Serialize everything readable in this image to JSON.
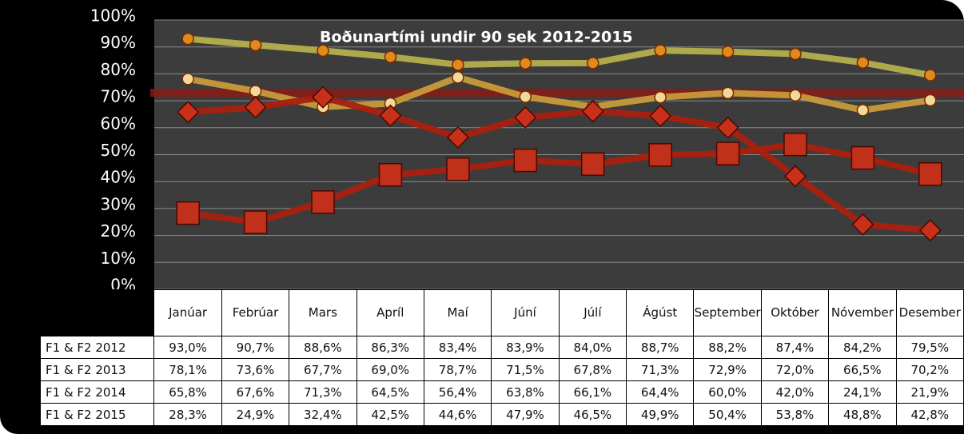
{
  "chart_data": {
    "type": "line",
    "title": "Boðunartími undir 90 sek 2012-2015",
    "categories": [
      "Janúar",
      "Febrúar",
      "Mars",
      "Apríl",
      "Maí",
      "Júní",
      "Júlí",
      "Ágúst",
      "September",
      "Október",
      "Nóvember",
      "Desember"
    ],
    "ylim": [
      0,
      100
    ],
    "yticks": [
      {
        "value": 0,
        "label": "0%"
      },
      {
        "value": 10,
        "label": "10%"
      },
      {
        "value": 20,
        "label": "20%"
      },
      {
        "value": 30,
        "label": "30%"
      },
      {
        "value": 40,
        "label": "40%"
      },
      {
        "value": 50,
        "label": "50%"
      },
      {
        "value": 60,
        "label": "60%"
      },
      {
        "value": 70,
        "label": "70%"
      },
      {
        "value": 80,
        "label": "80%"
      },
      {
        "value": 90,
        "label": "90%"
      },
      {
        "value": 100,
        "label": "100%"
      }
    ],
    "grid": true,
    "reference_line": {
      "value": 73,
      "color": "#8a1a14"
    },
    "series": [
      {
        "name": "F1 & F2 2012",
        "color": "#b4b04c",
        "marker": "circle",
        "marker_color": "#e08a1e",
        "values": [
          93.0,
          90.7,
          88.6,
          86.3,
          83.4,
          83.9,
          84.0,
          88.7,
          88.2,
          87.4,
          84.2,
          79.5
        ],
        "value_labels": [
          "93,0%",
          "90,7%",
          "88,6%",
          "86,3%",
          "83,4%",
          "83,9%",
          "84,0%",
          "88,7%",
          "88,2%",
          "87,4%",
          "84,2%",
          "79,5%"
        ]
      },
      {
        "name": "F1 & F2 2013",
        "color": "#c89a3a",
        "marker": "circle",
        "marker_color": "#f2d89a",
        "values": [
          78.1,
          73.6,
          67.7,
          69.0,
          78.7,
          71.5,
          67.8,
          71.3,
          72.9,
          72.0,
          66.5,
          70.2
        ],
        "value_labels": [
          "78,1%",
          "73,6%",
          "67,7%",
          "69,0%",
          "78,7%",
          "71,5%",
          "67,8%",
          "71,3%",
          "72,9%",
          "72,0%",
          "66,5%",
          "70,2%"
        ]
      },
      {
        "name": "F1 & F2 2014",
        "color": "#a8200e",
        "marker": "diamond",
        "marker_color": "#c8301a",
        "values": [
          65.8,
          67.6,
          71.3,
          64.5,
          56.4,
          63.8,
          66.1,
          64.4,
          60.0,
          42.0,
          24.1,
          21.9
        ],
        "value_labels": [
          "65,8%",
          "67,6%",
          "71,3%",
          "64,5%",
          "56,4%",
          "63,8%",
          "66,1%",
          "64,4%",
          "60,0%",
          "42,0%",
          "24,1%",
          "21,9%"
        ]
      },
      {
        "name": "F1 & F2 2015",
        "color": "#a8200e",
        "marker": "square",
        "marker_color": "#c0301a",
        "values": [
          28.3,
          24.9,
          32.4,
          42.5,
          44.6,
          47.9,
          46.5,
          49.9,
          50.4,
          53.8,
          48.8,
          42.8
        ],
        "value_labels": [
          "28,3%",
          "24,9%",
          "32,4%",
          "42,5%",
          "44,6%",
          "47,9%",
          "46,5%",
          "49,9%",
          "50,4%",
          "53,8%",
          "48,8%",
          "42,8%"
        ]
      }
    ]
  }
}
